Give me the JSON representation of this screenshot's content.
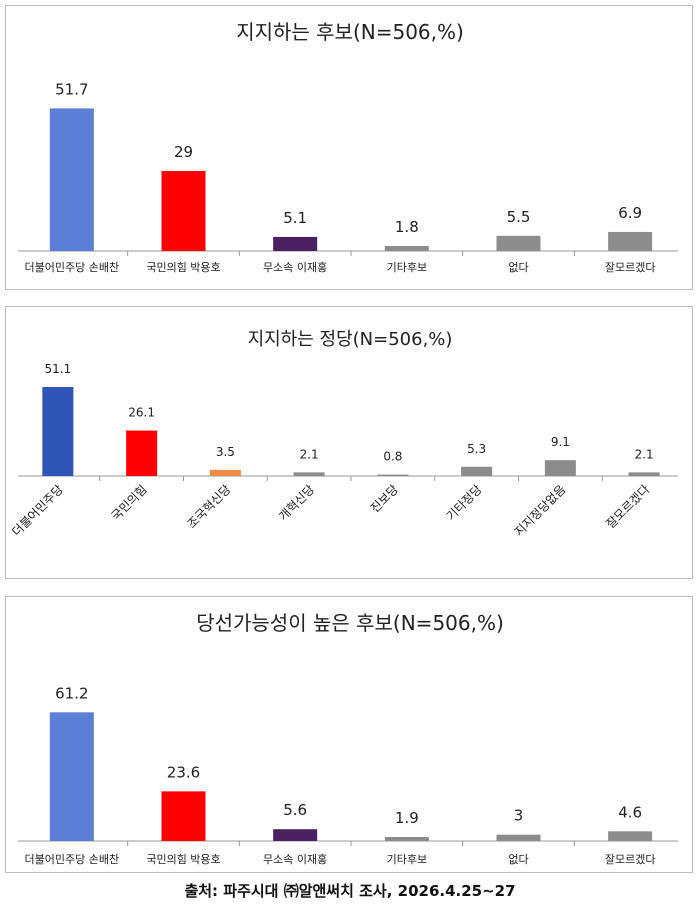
{
  "chart_data": [
    {
      "type": "bar",
      "title": "지지하는 후보(N=506,%)",
      "categories": [
        "더불어민주당 손배찬",
        "국민의힘 박용호",
        "무소속 이재홍",
        "기타후보",
        "없다",
        "잘모르겠다"
      ],
      "values": [
        51.7,
        29,
        5.1,
        1.8,
        5.5,
        6.9
      ],
      "value_labels": [
        "51.7",
        "29",
        "5.1",
        "1.8",
        "5.5",
        "6.9"
      ],
      "colors": [
        "#5b7fd6",
        "#ff0000",
        "#4b2063",
        "#8c8c8c",
        "#8c8c8c",
        "#8c8c8c"
      ],
      "ylim": [
        0,
        58
      ],
      "grid": false,
      "legend": "none"
    },
    {
      "type": "bar",
      "title": "지지하는 정당(N=506,%)",
      "categories": [
        "더불어민주당",
        "국민의힘",
        "조국혁신당",
        "개혁신당",
        "진보당",
        "기타정당",
        "지지정당없음",
        "잘모르겠다"
      ],
      "values": [
        51.1,
        26.1,
        3.5,
        2.1,
        0.8,
        5.3,
        9.1,
        2.1
      ],
      "value_labels": [
        "51.1",
        "26.1",
        "3.5",
        "2.1",
        "0.8",
        "5.3",
        "9.1",
        "2.1"
      ],
      "colors": [
        "#2f55b7",
        "#ff0000",
        "#f08c4a",
        "#8c8c8c",
        "#8c8c8c",
        "#8c8c8c",
        "#8c8c8c",
        "#8c8c8c"
      ],
      "ylim": [
        0,
        58
      ],
      "grid": false,
      "legend": "none"
    },
    {
      "type": "bar",
      "title": "당선가능성이 높은 후보(N=506,%)",
      "categories": [
        "더불어민주당 손배찬",
        "국민의힘 박용호",
        "무소속 이재홍",
        "기타후보",
        "없다",
        "잘모르겠다"
      ],
      "values": [
        61.2,
        23.6,
        5.6,
        1.9,
        3,
        4.6
      ],
      "value_labels": [
        "61.2",
        "23.6",
        "5.6",
        "1.9",
        "3",
        "4.6"
      ],
      "colors": [
        "#5b7fd6",
        "#ff0000",
        "#4b2063",
        "#8c8c8c",
        "#8c8c8c",
        "#8c8c8c"
      ],
      "ylim": [
        0,
        68
      ],
      "grid": false,
      "legend": "none"
    }
  ],
  "footer": {
    "source": "출처: 파주시대 ㈜알앤써치 조사, 2026.4.25~27"
  }
}
